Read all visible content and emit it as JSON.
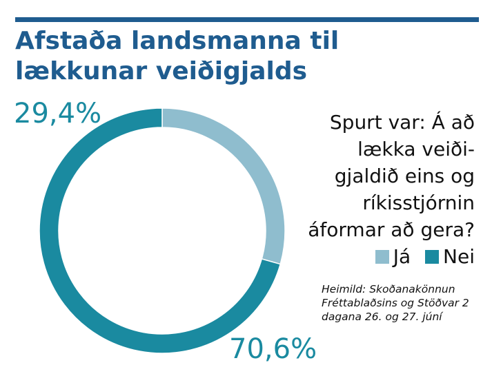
{
  "title": {
    "line1": "Afstaða landsmanna til",
    "line2": "lækkunar veiðigjalds"
  },
  "question": "Spurt var: Á að lækka veiði-gjaldið eins og ríkisstjórnin áformar að gera?",
  "source": {
    "line1": "Heimild: Skoðanakönnun",
    "line2": "Fréttablaðsins og Stöðvar 2",
    "line3": "dagana 26. og 27. júní"
  },
  "colors": {
    "title": "#1f5c8f",
    "ja": "#8fbdce",
    "nei": "#1a8aa0",
    "label": "#1a8aa0"
  },
  "chart_data": {
    "type": "pie",
    "style": "donut",
    "categories": [
      "Já",
      "Nei"
    ],
    "values": [
      29.4,
      70.6
    ],
    "labels": [
      "29,4%",
      "70,6%"
    ],
    "colors": [
      "#8fbdce",
      "#1a8aa0"
    ],
    "legend": "right"
  }
}
